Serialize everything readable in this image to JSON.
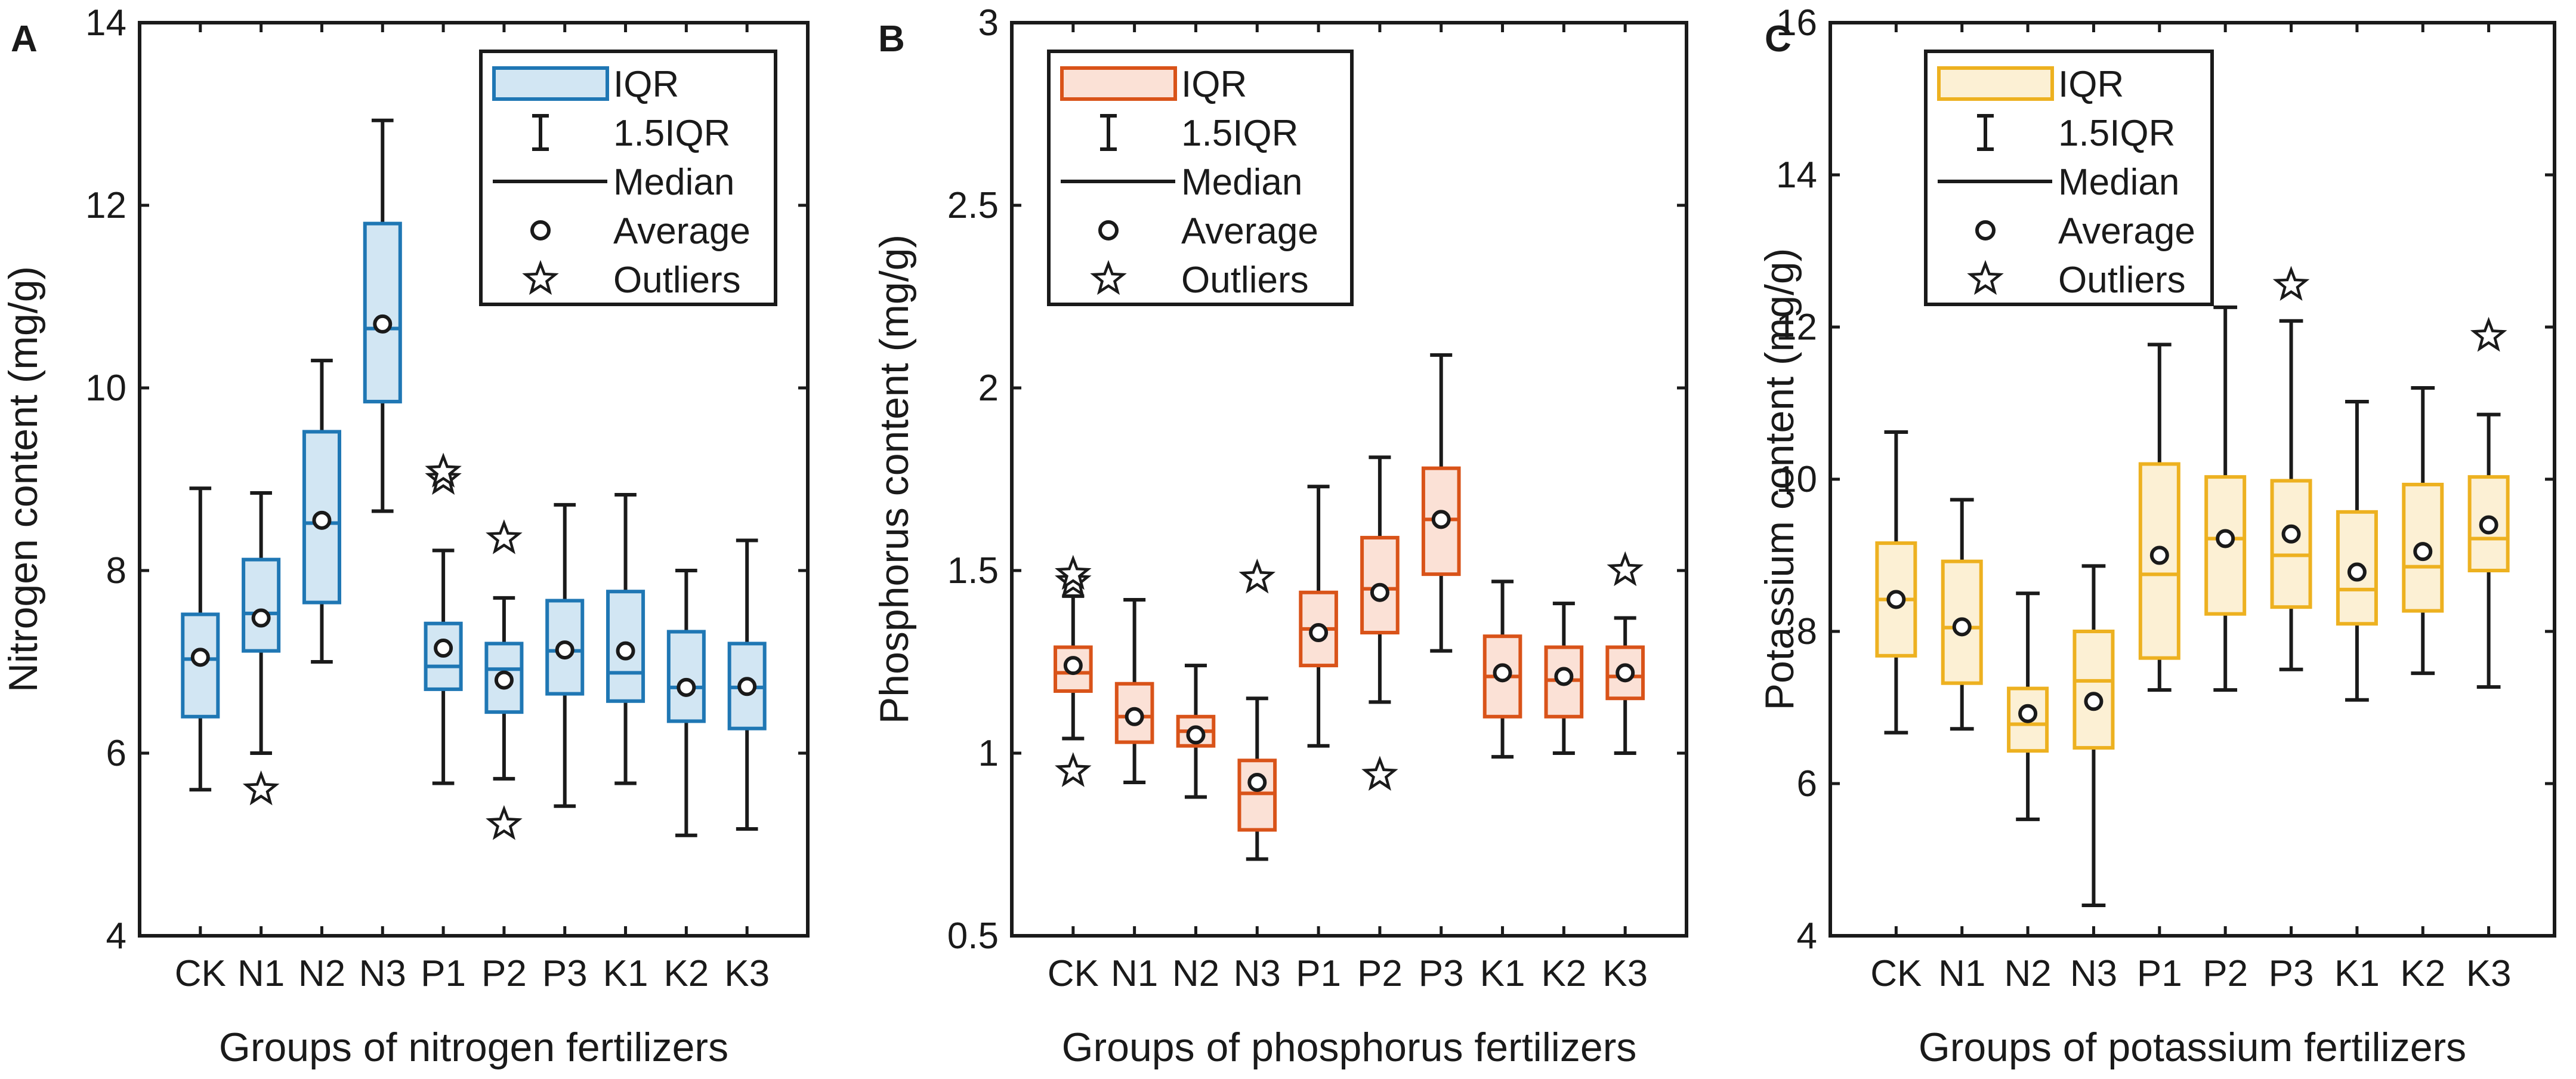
{
  "chart_data": [
    {
      "type": "boxplot",
      "panel": "A",
      "title": "",
      "xlabel": "Groups of nitrogen fertilizers",
      "ylabel": "Nitrogen content (mg/g)",
      "ylim": [
        4,
        14
      ],
      "yticks": [
        4,
        6,
        8,
        10,
        12,
        14
      ],
      "categories": [
        "CK",
        "N1",
        "N2",
        "N3",
        "P1",
        "P2",
        "P3",
        "K1",
        "K2",
        "K3"
      ],
      "color": "#1f77b4",
      "fill": "#d2e6f3",
      "boxes": [
        {
          "whisker_low": 5.6,
          "q1": 6.4,
          "median": 7.03,
          "q3": 7.52,
          "whisker_high": 8.9,
          "mean": 7.05,
          "outliers": []
        },
        {
          "whisker_low": 6.0,
          "q1": 7.12,
          "median": 7.53,
          "q3": 8.12,
          "whisker_high": 8.85,
          "mean": 7.48,
          "outliers": [
            5.6
          ]
        },
        {
          "whisker_low": 7.0,
          "q1": 7.65,
          "median": 8.52,
          "q3": 9.52,
          "whisker_high": 10.3,
          "mean": 8.55,
          "outliers": []
        },
        {
          "whisker_low": 8.65,
          "q1": 9.85,
          "median": 10.65,
          "q3": 11.8,
          "whisker_high": 12.93,
          "mean": 10.7,
          "outliers": []
        },
        {
          "whisker_low": 5.67,
          "q1": 6.7,
          "median": 6.95,
          "q3": 7.42,
          "whisker_high": 8.22,
          "mean": 7.15,
          "outliers": [
            9.0,
            9.08
          ]
        },
        {
          "whisker_low": 5.72,
          "q1": 6.45,
          "median": 6.92,
          "q3": 7.2,
          "whisker_high": 7.7,
          "mean": 6.8,
          "outliers": [
            8.35,
            5.22
          ]
        },
        {
          "whisker_low": 5.42,
          "q1": 6.65,
          "median": 7.12,
          "q3": 7.67,
          "whisker_high": 8.72,
          "mean": 7.13,
          "outliers": []
        },
        {
          "whisker_low": 5.67,
          "q1": 6.57,
          "median": 6.88,
          "q3": 7.77,
          "whisker_high": 8.83,
          "mean": 7.12,
          "outliers": []
        },
        {
          "whisker_low": 5.1,
          "q1": 6.35,
          "median": 6.72,
          "q3": 7.33,
          "whisker_high": 8.0,
          "mean": 6.72,
          "outliers": []
        },
        {
          "whisker_low": 5.17,
          "q1": 6.27,
          "median": 6.72,
          "q3": 7.2,
          "whisker_high": 8.33,
          "mean": 6.73,
          "outliers": []
        }
      ],
      "legend": {
        "position": "top-right",
        "items": [
          "IQR",
          "1.5IQR",
          "Median",
          "Average",
          "Outliers"
        ]
      }
    },
    {
      "type": "boxplot",
      "panel": "B",
      "title": "",
      "xlabel": "Groups of phosphorus fertilizers",
      "ylabel": "Phosphorus content (mg/g)",
      "ylim": [
        0.5,
        3
      ],
      "yticks": [
        0.5,
        1,
        1.5,
        2,
        2.5,
        3
      ],
      "categories": [
        "CK",
        "N1",
        "N2",
        "N3",
        "P1",
        "P2",
        "P3",
        "K1",
        "K2",
        "K3"
      ],
      "color": "#d95319",
      "fill": "#fbe1d6",
      "boxes": [
        {
          "whisker_low": 1.04,
          "q1": 1.17,
          "median": 1.22,
          "q3": 1.29,
          "whisker_high": 1.43,
          "mean": 1.24,
          "outliers": [
            1.47,
            1.49,
            0.95
          ]
        },
        {
          "whisker_low": 0.92,
          "q1": 1.03,
          "median": 1.1,
          "q3": 1.19,
          "whisker_high": 1.42,
          "mean": 1.1,
          "outliers": []
        },
        {
          "whisker_low": 0.88,
          "q1": 1.02,
          "median": 1.06,
          "q3": 1.1,
          "whisker_high": 1.24,
          "mean": 1.05,
          "outliers": []
        },
        {
          "whisker_low": 0.71,
          "q1": 0.79,
          "median": 0.89,
          "q3": 0.98,
          "whisker_high": 1.15,
          "mean": 0.92,
          "outliers": [
            1.48
          ]
        },
        {
          "whisker_low": 1.02,
          "q1": 1.24,
          "median": 1.34,
          "q3": 1.44,
          "whisker_high": 1.73,
          "mean": 1.33,
          "outliers": []
        },
        {
          "whisker_low": 1.14,
          "q1": 1.33,
          "median": 1.45,
          "q3": 1.59,
          "whisker_high": 1.81,
          "mean": 1.44,
          "outliers": [
            0.94
          ]
        },
        {
          "whisker_low": 1.28,
          "q1": 1.49,
          "median": 1.64,
          "q3": 1.78,
          "whisker_high": 2.09,
          "mean": 1.64,
          "outliers": []
        },
        {
          "whisker_low": 0.99,
          "q1": 1.1,
          "median": 1.21,
          "q3": 1.32,
          "whisker_high": 1.47,
          "mean": 1.22,
          "outliers": []
        },
        {
          "whisker_low": 1.0,
          "q1": 1.1,
          "median": 1.2,
          "q3": 1.29,
          "whisker_high": 1.41,
          "mean": 1.21,
          "outliers": []
        },
        {
          "whisker_low": 1.0,
          "q1": 1.15,
          "median": 1.21,
          "q3": 1.29,
          "whisker_high": 1.37,
          "mean": 1.22,
          "outliers": [
            1.5
          ]
        }
      ],
      "legend": {
        "position": "top-left",
        "items": [
          "IQR",
          "1.5IQR",
          "Median",
          "Average",
          "Outliers"
        ]
      }
    },
    {
      "type": "boxplot",
      "panel": "C",
      "title": "",
      "xlabel": "Groups of potassium fertilizers",
      "ylabel": "Potassium content (mg/g)",
      "ylim": [
        4,
        16
      ],
      "yticks": [
        4,
        6,
        8,
        10,
        12,
        14,
        16
      ],
      "categories": [
        "CK",
        "N1",
        "N2",
        "N3",
        "P1",
        "P2",
        "P3",
        "K1",
        "K2",
        "K3"
      ],
      "color": "#edb120",
      "fill": "#fcf0d4",
      "boxes": [
        {
          "whisker_low": 6.67,
          "q1": 7.68,
          "median": 8.42,
          "q3": 9.16,
          "whisker_high": 10.62,
          "mean": 8.42,
          "outliers": []
        },
        {
          "whisker_low": 6.72,
          "q1": 7.32,
          "median": 8.05,
          "q3": 8.92,
          "whisker_high": 9.73,
          "mean": 8.06,
          "outliers": []
        },
        {
          "whisker_low": 5.53,
          "q1": 6.43,
          "median": 6.78,
          "q3": 7.25,
          "whisker_high": 8.5,
          "mean": 6.92,
          "outliers": []
        },
        {
          "whisker_low": 4.4,
          "q1": 6.47,
          "median": 7.35,
          "q3": 8.0,
          "whisker_high": 8.86,
          "mean": 7.08,
          "outliers": []
        },
        {
          "whisker_low": 7.23,
          "q1": 7.65,
          "median": 8.75,
          "q3": 10.2,
          "whisker_high": 11.77,
          "mean": 9.0,
          "outliers": []
        },
        {
          "whisker_low": 7.23,
          "q1": 8.23,
          "median": 9.22,
          "q3": 10.03,
          "whisker_high": 12.26,
          "mean": 9.22,
          "outliers": []
        },
        {
          "whisker_low": 7.5,
          "q1": 8.32,
          "median": 9.0,
          "q3": 9.98,
          "whisker_high": 12.08,
          "mean": 9.28,
          "outliers": [
            12.55
          ]
        },
        {
          "whisker_low": 7.1,
          "q1": 8.1,
          "median": 8.55,
          "q3": 9.57,
          "whisker_high": 11.02,
          "mean": 8.78,
          "outliers": []
        },
        {
          "whisker_low": 7.45,
          "q1": 8.27,
          "median": 8.85,
          "q3": 9.93,
          "whisker_high": 11.2,
          "mean": 9.05,
          "outliers": []
        },
        {
          "whisker_low": 7.27,
          "q1": 8.8,
          "median": 9.22,
          "q3": 10.03,
          "whisker_high": 10.85,
          "mean": 9.4,
          "outliers": [
            11.88
          ]
        }
      ],
      "legend": {
        "position": "top-left",
        "items": [
          "IQR",
          "1.5IQR",
          "Median",
          "Average",
          "Outliers"
        ]
      }
    }
  ]
}
